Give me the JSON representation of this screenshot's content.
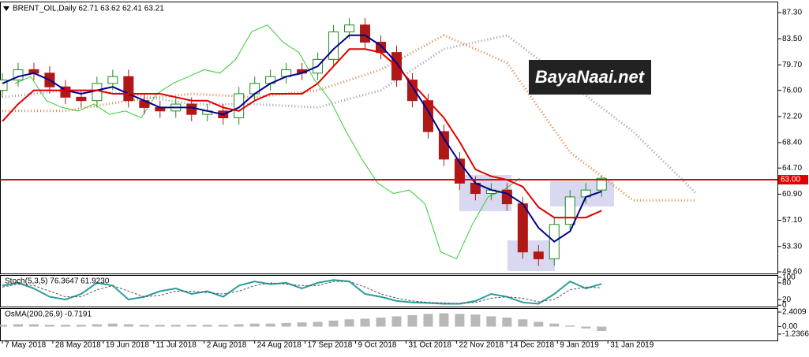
{
  "chart_data": [
    {
      "type": "candlestick",
      "title": "BRENT_OIL,Daily  62.71 63.62 62.41 63.21",
      "watermark": "BayaNaai.net",
      "x": [
        0,
        5,
        10,
        15,
        20,
        25,
        30,
        35,
        40,
        45,
        50,
        55,
        60,
        65,
        70,
        75,
        80,
        85,
        90,
        95,
        100,
        105,
        110,
        115,
        120,
        125,
        130,
        135,
        140,
        145,
        150,
        155,
        160,
        165,
        170,
        175,
        180,
        185,
        190
      ],
      "open": [
        76.0,
        77.5,
        79.0,
        78.5,
        76.5,
        75.0,
        74.5,
        77.0,
        78.0,
        74.5,
        73.5,
        73.0,
        74.0,
        72.5,
        73.0,
        72.0,
        75.5,
        77.0,
        78.0,
        79.0,
        78.5,
        80.5,
        84.5,
        85.5,
        83.0,
        81.5,
        77.5,
        74.5,
        70.0,
        66.0,
        62.5,
        61.0,
        61.5,
        59.5,
        52.5,
        51.5,
        56.5,
        60.5,
        61.5
      ],
      "high": [
        78.5,
        80.0,
        80.0,
        79.5,
        77.5,
        76.0,
        78.0,
        79.0,
        79.0,
        75.5,
        74.5,
        75.0,
        75.0,
        74.0,
        74.0,
        76.5,
        78.0,
        79.0,
        80.0,
        80.0,
        81.5,
        85.5,
        86.5,
        86.5,
        84.0,
        82.5,
        78.5,
        75.5,
        71.0,
        67.0,
        63.5,
        62.5,
        62.5,
        60.5,
        53.5,
        57.5,
        61.5,
        62.5,
        63.62
      ],
      "low": [
        75.0,
        76.5,
        77.5,
        75.5,
        74.0,
        73.5,
        73.5,
        76.0,
        73.5,
        72.5,
        72.0,
        72.0,
        71.5,
        71.5,
        71.0,
        71.0,
        74.5,
        76.0,
        77.0,
        77.5,
        77.5,
        79.5,
        83.5,
        82.0,
        80.5,
        76.5,
        73.5,
        69.0,
        65.0,
        61.5,
        60.0,
        60.0,
        58.5,
        51.5,
        50.5,
        50.5,
        55.5,
        59.5,
        60.5
      ],
      "close": [
        77.5,
        79.0,
        78.5,
        76.5,
        75.0,
        74.5,
        77.0,
        78.0,
        74.5,
        73.5,
        73.0,
        74.0,
        72.5,
        73.0,
        72.0,
        75.5,
        77.0,
        78.0,
        79.0,
        78.5,
        80.5,
        84.5,
        85.5,
        83.0,
        81.5,
        77.5,
        74.5,
        70.0,
        66.0,
        62.5,
        61.0,
        61.5,
        59.5,
        52.5,
        51.5,
        56.5,
        60.5,
        61.5,
        63.21
      ],
      "up_color": "#1f8a1f",
      "down_color": "#b01818",
      "series": [
        {
          "color": "#00008b",
          "width": 2,
          "values": [
            77,
            78,
            78.5,
            77.5,
            76,
            75.5,
            76,
            76.5,
            75.5,
            74.5,
            73.5,
            73.5,
            73.5,
            73,
            72.5,
            73.5,
            75.5,
            77,
            78,
            78.5,
            79.5,
            82,
            84,
            84,
            82.5,
            80,
            76.5,
            73,
            69,
            65.5,
            62.5,
            61.5,
            61,
            59.5,
            56,
            54,
            55.5,
            60.5,
            61.3
          ]
        },
        {
          "color": "#e00000",
          "width": 2,
          "values": [
            71.5,
            74,
            76,
            76,
            76,
            76,
            76,
            75.5,
            75.5,
            75.5,
            75.5,
            75,
            74.5,
            74.5,
            73.5,
            73,
            74.5,
            75.5,
            75.5,
            75.5,
            77,
            79.5,
            82,
            82,
            81.5,
            79.5,
            77,
            74.5,
            72,
            68.5,
            64.5,
            63.5,
            63,
            62,
            59,
            57.5,
            57.5,
            57.5,
            58.5
          ]
        },
        {
          "color": "#33cc33",
          "width": 1,
          "x": [
            4,
            9,
            14,
            19,
            24,
            29,
            34,
            39,
            44,
            49,
            54,
            59,
            64,
            69,
            74,
            79,
            84,
            89,
            94,
            99,
            104,
            109,
            114,
            119,
            124,
            129,
            134,
            139,
            144,
            149,
            154,
            159,
            164
          ],
          "values": [
            77.0,
            78.0,
            74.5,
            73.5,
            73.0,
            74.0,
            72.5,
            73.0,
            72.0,
            75.5,
            77.0,
            78.0,
            79.0,
            78.5,
            80.5,
            84.5,
            85.5,
            83.0,
            81.5,
            77.5,
            74.5,
            70.0,
            66.0,
            62.5,
            61.0,
            61.5,
            59.5,
            52.5,
            51.5,
            56.5,
            60.5,
            61.5,
            63.21
          ]
        },
        {
          "color": "#e08040",
          "width": 3,
          "dash": "1 3",
          "x": [
            0,
            20,
            40,
            60,
            80,
            100,
            120,
            140,
            160,
            180,
            200,
            220
          ],
          "values": [
            73,
            73,
            74.5,
            75.5,
            75,
            76,
            79,
            84,
            80,
            67,
            60,
            60
          ]
        },
        {
          "color": "#9a9aae",
          "width": 3,
          "dash": "1 3",
          "x": [
            0,
            20,
            40,
            60,
            80,
            100,
            120,
            140,
            160,
            180,
            200,
            220
          ],
          "values": [
            75,
            76,
            75.5,
            74,
            74,
            73.5,
            76,
            82,
            84,
            77,
            70,
            61
          ]
        }
      ],
      "hline": {
        "value": 63,
        "label": "63.00",
        "color": "#e00000"
      },
      "xlim": [
        -0.5,
        245.75
      ],
      "xticks": [
        {
          "value": 0,
          "label": "7 May 2018"
        },
        {
          "value": 16,
          "label": "28 May 2018"
        },
        {
          "value": 32,
          "label": "19 Jun 2018"
        },
        {
          "value": 48,
          "label": "11 Jul 2018"
        },
        {
          "value": 64,
          "label": "2 Aug 2018"
        },
        {
          "value": 80,
          "label": "24 Aug 2018"
        },
        {
          "value": 96,
          "label": "17 Sep 2018"
        },
        {
          "value": 112,
          "label": "9 Oct 2018"
        },
        {
          "value": 128,
          "label": "31 Oct 2018"
        },
        {
          "value": 144,
          "label": "22 Nov 2018"
        },
        {
          "value": 160,
          "label": "14 Dec 2018"
        },
        {
          "value": 176,
          "label": "9 Jan 2019"
        },
        {
          "value": 192,
          "label": "31 Jan 2019"
        }
      ],
      "ylim": [
        49.37,
        88.79
      ],
      "yticks": [
        {
          "value": 87.3,
          "label": "87.30"
        },
        {
          "value": 83.5,
          "label": "83.50"
        },
        {
          "value": 79.7,
          "label": "79.70"
        },
        {
          "value": 76,
          "label": "76.00"
        },
        {
          "value": 72.2,
          "label": "72.20"
        },
        {
          "value": 68.4,
          "label": "68.40"
        },
        {
          "value": 64.7,
          "label": "64.70"
        },
        {
          "value": 60.9,
          "label": "60.90"
        },
        {
          "value": 57.1,
          "label": "57.10"
        },
        {
          "value": 53.3,
          "label": "53.30"
        },
        {
          "value": 49.6,
          "label": "49.60"
        }
      ]
    },
    {
      "type": "line",
      "title": "Stoch(5,3,5) 76.3647 61.9230",
      "series": [
        {
          "color": "#2a9d9d",
          "width": 2,
          "values": [
            70,
            80,
            60,
            30,
            20,
            40,
            80,
            70,
            20,
            30,
            50,
            60,
            40,
            50,
            30,
            70,
            85,
            75,
            80,
            60,
            80,
            90,
            85,
            40,
            30,
            15,
            10,
            8,
            5,
            5,
            15,
            40,
            30,
            10,
            5,
            40,
            85,
            60,
            76.3647
          ]
        },
        {
          "color": "#555555",
          "width": 1,
          "dash": "3 2",
          "values": [
            65,
            75,
            70,
            50,
            30,
            30,
            55,
            70,
            50,
            30,
            35,
            50,
            50,
            45,
            40,
            50,
            70,
            80,
            75,
            70,
            70,
            85,
            85,
            65,
            40,
            25,
            15,
            10,
            8,
            6,
            10,
            25,
            30,
            25,
            12,
            20,
            55,
            65,
            61.923
          ]
        }
      ],
      "ylim": [
        -5,
        105
      ],
      "yticks": [
        100,
        80,
        20,
        0
      ]
    },
    {
      "type": "bar",
      "title": "OsMA(200,26,9) -0.7191",
      "color": "#b8b8b8",
      "values": [
        0.3,
        0.4,
        0.4,
        0.3,
        0.3,
        0.3,
        0.4,
        0.5,
        0.4,
        0.3,
        0.3,
        0.3,
        0.3,
        0.3,
        0.3,
        0.4,
        0.5,
        0.5,
        0.6,
        0.7,
        0.8,
        1.0,
        1.2,
        1.3,
        1.5,
        1.7,
        1.9,
        2.1,
        2.2,
        2.1,
        2.0,
        1.7,
        1.5,
        1.2,
        0.8,
        0.5,
        0.2,
        -0.3,
        -0.7191
      ],
      "ylim": [
        -2.28,
        2.92
      ],
      "yticks": [
        2.4009,
        {
          "value": 0,
          "label": "0.00"
        },
        -1.2366
      ]
    }
  ]
}
